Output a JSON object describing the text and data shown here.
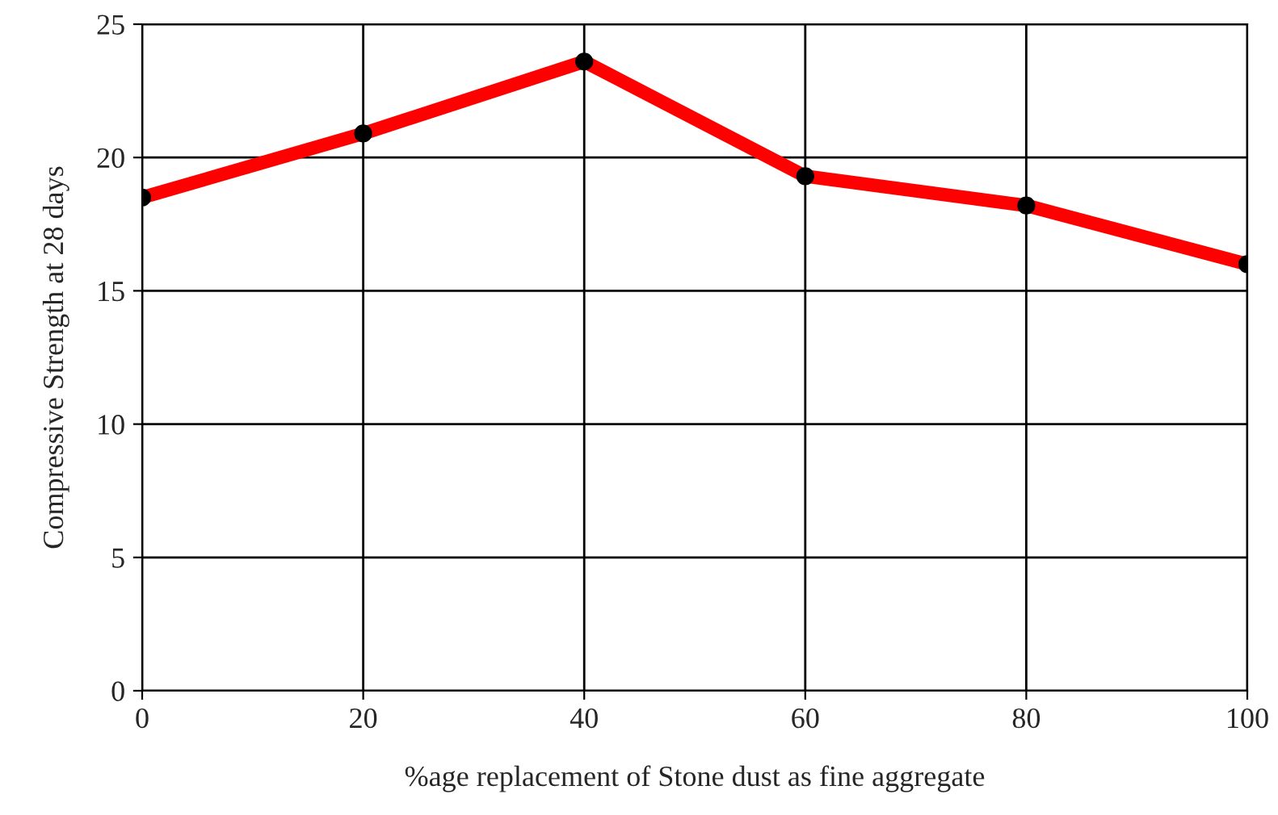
{
  "chart_data": {
    "type": "line",
    "xlabel": "%age replacement of Stone dust as fine aggregate",
    "ylabel": "Compressive Strength at 28 days",
    "x": [
      0,
      20,
      40,
      60,
      80,
      100
    ],
    "series": [
      {
        "color": "#ff0000",
        "values": [
          18.5,
          20.9,
          23.6,
          19.3,
          18.2,
          16.0
        ]
      }
    ],
    "xlim": [
      0,
      100
    ],
    "xticks": [
      0,
      20,
      40,
      60,
      80,
      100
    ],
    "ylim": [
      0,
      25
    ],
    "yticks": [
      0,
      5,
      10,
      15,
      20,
      25
    ],
    "grid": true,
    "marker": "circle",
    "line_style": "solid"
  }
}
